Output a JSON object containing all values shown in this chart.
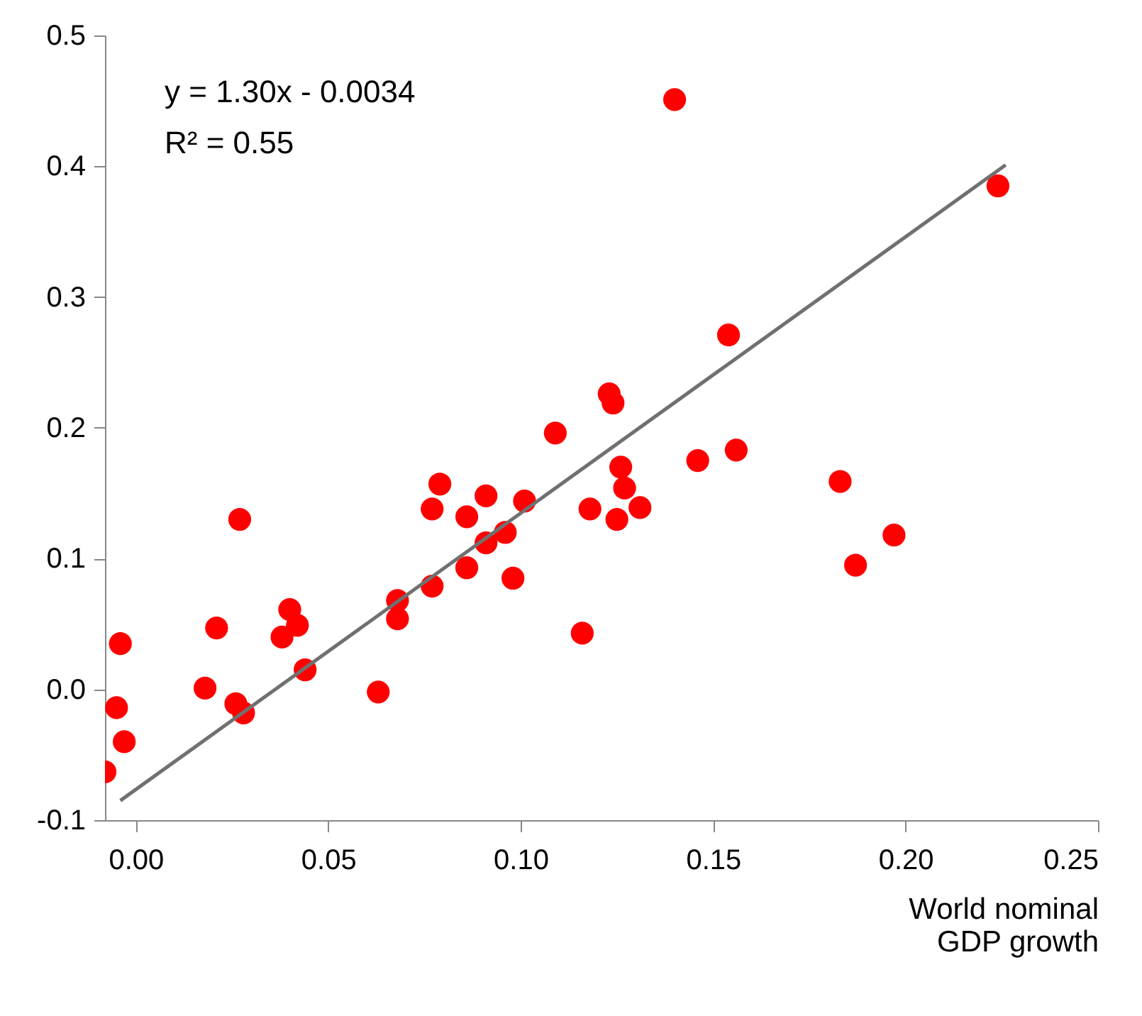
{
  "chart_data": {
    "type": "scatter",
    "xlabel": "World nominal GDP growth",
    "annotations": [
      "y = 1.30x - 0.0034",
      "R² = 0.55"
    ],
    "xlim": [
      -0.008,
      0.25
    ],
    "ylim": [
      -0.1,
      0.5
    ],
    "xticks": [
      {
        "value": 0,
        "label": "0.00"
      },
      0.05,
      {
        "value": 0.1,
        "label": "0.10"
      },
      0.15,
      {
        "value": 0.2,
        "label": "0.20"
      },
      0.25
    ],
    "yticks": [
      {
        "value": -0.1,
        "label": "-0.1"
      },
      {
        "value": 0,
        "label": "0.0"
      },
      0.1,
      0.2,
      0.3,
      0.4,
      0.5
    ],
    "grid": false,
    "series": [
      {
        "marker": "circle",
        "color": "#ff0000",
        "x": [
          -0.008,
          -0.005,
          -0.004,
          -0.003,
          0.018,
          0.021,
          0.026,
          0.027,
          0.028,
          0.038,
          0.04,
          0.042,
          0.044,
          0.063,
          0.068,
          0.068,
          0.077,
          0.077,
          0.079,
          0.086,
          0.086,
          0.091,
          0.091,
          0.096,
          0.098,
          0.101,
          0.109,
          0.116,
          0.118,
          0.123,
          0.124,
          0.126,
          0.125,
          0.127,
          0.131,
          0.14,
          0.146,
          0.154,
          0.156,
          0.183,
          0.187,
          0.197,
          0.224
        ],
        "values": [
          -0.063,
          -0.014,
          0.035,
          -0.04,
          0.001,
          0.047,
          -0.011,
          0.13,
          -0.018,
          0.04,
          0.061,
          0.049,
          0.015,
          -0.002,
          0.068,
          0.054,
          0.138,
          0.079,
          0.157,
          0.132,
          0.093,
          0.148,
          0.112,
          0.12,
          0.085,
          0.144,
          0.196,
          0.043,
          0.138,
          0.226,
          0.219,
          0.17,
          0.13,
          0.154,
          0.139,
          0.451,
          0.175,
          0.271,
          0.183,
          0.159,
          0.095,
          0.118,
          0.385
        ]
      },
      {
        "type": "line",
        "marker": "none",
        "color": "#707070",
        "line_style": "solid",
        "x": [
          -0.004,
          0.226
        ],
        "values": [
          -0.085,
          0.401
        ]
      }
    ]
  }
}
